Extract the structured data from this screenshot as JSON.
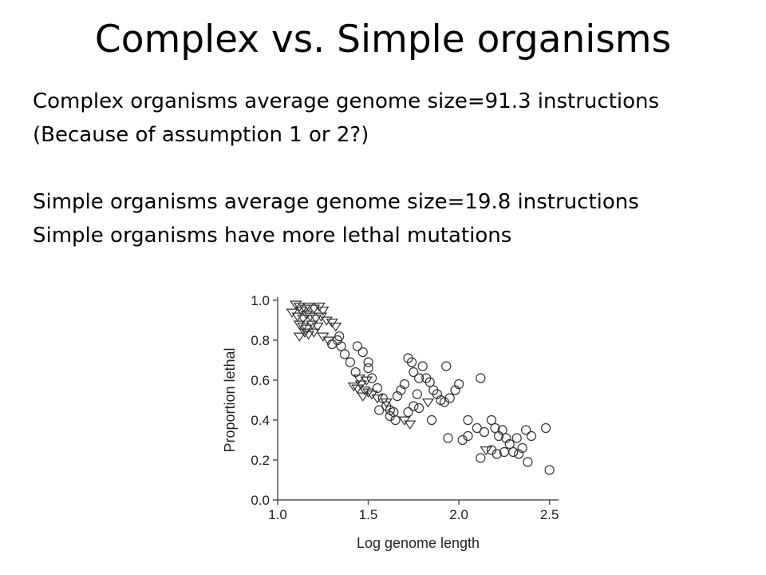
{
  "slide": {
    "title": "Complex vs. Simple organisms",
    "lines": [
      "Complex organisms average genome size=91.3 instructions",
      "(Because of assumption 1 or 2?)",
      "",
      "Simple organisms average genome size=19.8 instructions",
      "Simple organisms have more lethal mutations"
    ]
  },
  "chart_data": {
    "type": "scatter",
    "title": "",
    "xlabel": "Log genome length",
    "ylabel": "Proportion lethal",
    "xlim": [
      1.0,
      2.55
    ],
    "ylim": [
      0.0,
      1.0
    ],
    "xticks": [
      "1.0",
      "1.5",
      "2.0",
      "2.5"
    ],
    "yticks": [
      "0.0",
      "0.2",
      "0.4",
      "0.6",
      "0.8",
      "1.0"
    ],
    "grid": false,
    "marker_color": "#333333",
    "series": [
      {
        "marker": "triangle-down",
        "points": [
          [
            1.1,
            0.98
          ],
          [
            1.12,
            0.97
          ],
          [
            1.13,
            0.95
          ],
          [
            1.15,
            0.96
          ],
          [
            1.17,
            0.97
          ],
          [
            1.2,
            0.96
          ],
          [
            1.23,
            0.97
          ],
          [
            1.25,
            0.95
          ],
          [
            1.08,
            0.94
          ],
          [
            1.11,
            0.92
          ],
          [
            1.14,
            0.91
          ],
          [
            1.16,
            0.93
          ],
          [
            1.18,
            0.92
          ],
          [
            1.21,
            0.91
          ],
          [
            1.24,
            0.92
          ],
          [
            1.27,
            0.9
          ],
          [
            1.12,
            0.88
          ],
          [
            1.14,
            0.87
          ],
          [
            1.16,
            0.86
          ],
          [
            1.19,
            0.88
          ],
          [
            1.22,
            0.87
          ],
          [
            1.3,
            0.89
          ],
          [
            1.32,
            0.87
          ],
          [
            1.15,
            0.84
          ],
          [
            1.17,
            0.83
          ],
          [
            1.2,
            0.84
          ],
          [
            1.12,
            0.82
          ],
          [
            1.25,
            0.82
          ],
          [
            1.28,
            0.8
          ],
          [
            1.42,
            0.57
          ],
          [
            1.44,
            0.56
          ],
          [
            1.46,
            0.58
          ],
          [
            1.48,
            0.55
          ],
          [
            1.5,
            0.54
          ],
          [
            1.47,
            0.52
          ],
          [
            1.52,
            0.53
          ],
          [
            1.45,
            0.61
          ],
          [
            1.49,
            0.6
          ],
          [
            1.55,
            0.51
          ],
          [
            1.6,
            0.49
          ],
          [
            1.7,
            0.4
          ],
          [
            1.73,
            0.38
          ],
          [
            1.83,
            0.49
          ],
          [
            2.15,
            0.25
          ]
        ]
      },
      {
        "marker": "circle",
        "points": [
          [
            1.3,
            0.78
          ],
          [
            1.33,
            0.8
          ],
          [
            1.35,
            0.77
          ],
          [
            1.34,
            0.82
          ],
          [
            1.37,
            0.73
          ],
          [
            1.4,
            0.69
          ],
          [
            1.44,
            0.77
          ],
          [
            1.47,
            0.74
          ],
          [
            1.43,
            0.64
          ],
          [
            1.5,
            0.66
          ],
          [
            1.5,
            0.69
          ],
          [
            1.52,
            0.61
          ],
          [
            1.55,
            0.56
          ],
          [
            1.58,
            0.51
          ],
          [
            1.6,
            0.47
          ],
          [
            1.62,
            0.45
          ],
          [
            1.64,
            0.44
          ],
          [
            1.66,
            0.52
          ],
          [
            1.68,
            0.55
          ],
          [
            1.7,
            0.58
          ],
          [
            1.72,
            0.71
          ],
          [
            1.74,
            0.69
          ],
          [
            1.75,
            0.64
          ],
          [
            1.77,
            0.53
          ],
          [
            1.78,
            0.61
          ],
          [
            1.8,
            0.67
          ],
          [
            1.82,
            0.61
          ],
          [
            1.84,
            0.59
          ],
          [
            1.86,
            0.55
          ],
          [
            1.88,
            0.53
          ],
          [
            1.9,
            0.5
          ],
          [
            1.92,
            0.49
          ],
          [
            1.95,
            0.51
          ],
          [
            1.98,
            0.55
          ],
          [
            2.0,
            0.58
          ],
          [
            1.93,
            0.67
          ],
          [
            2.12,
            0.61
          ],
          [
            2.05,
            0.4
          ],
          [
            2.1,
            0.36
          ],
          [
            2.14,
            0.34
          ],
          [
            2.18,
            0.4
          ],
          [
            2.2,
            0.36
          ],
          [
            2.22,
            0.32
          ],
          [
            2.24,
            0.35
          ],
          [
            2.26,
            0.31
          ],
          [
            2.28,
            0.28
          ],
          [
            2.3,
            0.24
          ],
          [
            2.32,
            0.31
          ],
          [
            2.35,
            0.26
          ],
          [
            2.37,
            0.35
          ],
          [
            2.4,
            0.32
          ],
          [
            2.48,
            0.36
          ],
          [
            2.5,
            0.15
          ],
          [
            2.38,
            0.19
          ],
          [
            2.12,
            0.21
          ],
          [
            2.18,
            0.25
          ],
          [
            2.21,
            0.23
          ],
          [
            2.25,
            0.24
          ],
          [
            2.33,
            0.23
          ],
          [
            2.05,
            0.32
          ],
          [
            2.02,
            0.3
          ],
          [
            1.94,
            0.31
          ],
          [
            1.78,
            0.46
          ],
          [
            1.72,
            0.44
          ],
          [
            1.65,
            0.4
          ],
          [
            1.62,
            0.42
          ],
          [
            1.56,
            0.45
          ],
          [
            1.85,
            0.4
          ],
          [
            1.75,
            0.47
          ]
        ]
      }
    ]
  }
}
